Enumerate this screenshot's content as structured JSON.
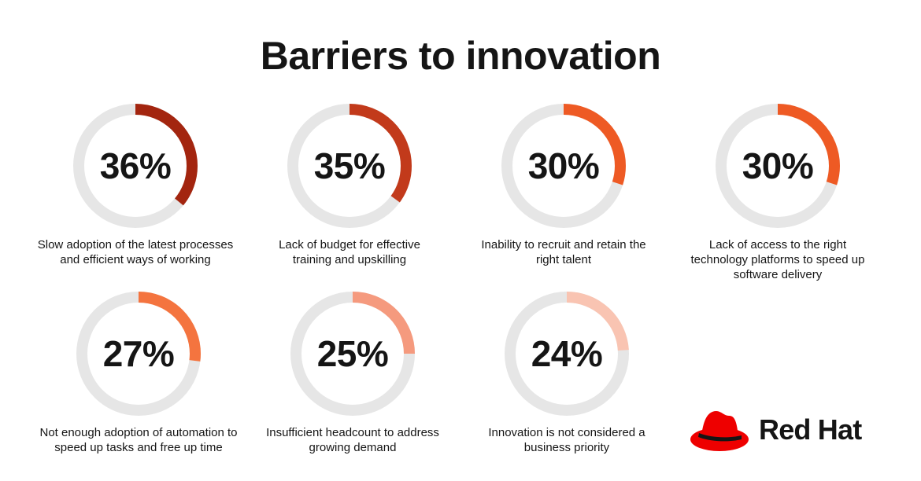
{
  "header": {
    "title": "Barriers to innovation"
  },
  "chart_data": {
    "type": "donut",
    "title": "Barriers to innovation",
    "unit": "%",
    "items": [
      {
        "value": 36,
        "display": "36%",
        "label": "Slow adoption of the latest processes and efficient ways of working",
        "color": "#a3250f"
      },
      {
        "value": 35,
        "display": "35%",
        "label": "Lack of budget for effective training and upskilling",
        "color": "#c23a1b"
      },
      {
        "value": 30,
        "display": "30%",
        "label": "Inability to recruit and retain the right talent",
        "color": "#ee5a24"
      },
      {
        "value": 30,
        "display": "30%",
        "label": "Lack of access to the right technology platforms to speed up software delivery",
        "color": "#ee5a24"
      },
      {
        "value": 27,
        "display": "27%",
        "label": "Not enough adoption of automation to speed up tasks and free up time",
        "color": "#f4743f"
      },
      {
        "value": 25,
        "display": "25%",
        "label": "Insufficient headcount to address growing demand",
        "color": "#f59a7e"
      },
      {
        "value": 24,
        "display": "24%",
        "label": "Innovation is not considered a business priority",
        "color": "#f9c4b2"
      }
    ],
    "track_color": "#e6e6e6"
  },
  "brand": {
    "name": "Red Hat",
    "color": "#ee0000",
    "logo_icon": "red-hat-logo-icon"
  }
}
